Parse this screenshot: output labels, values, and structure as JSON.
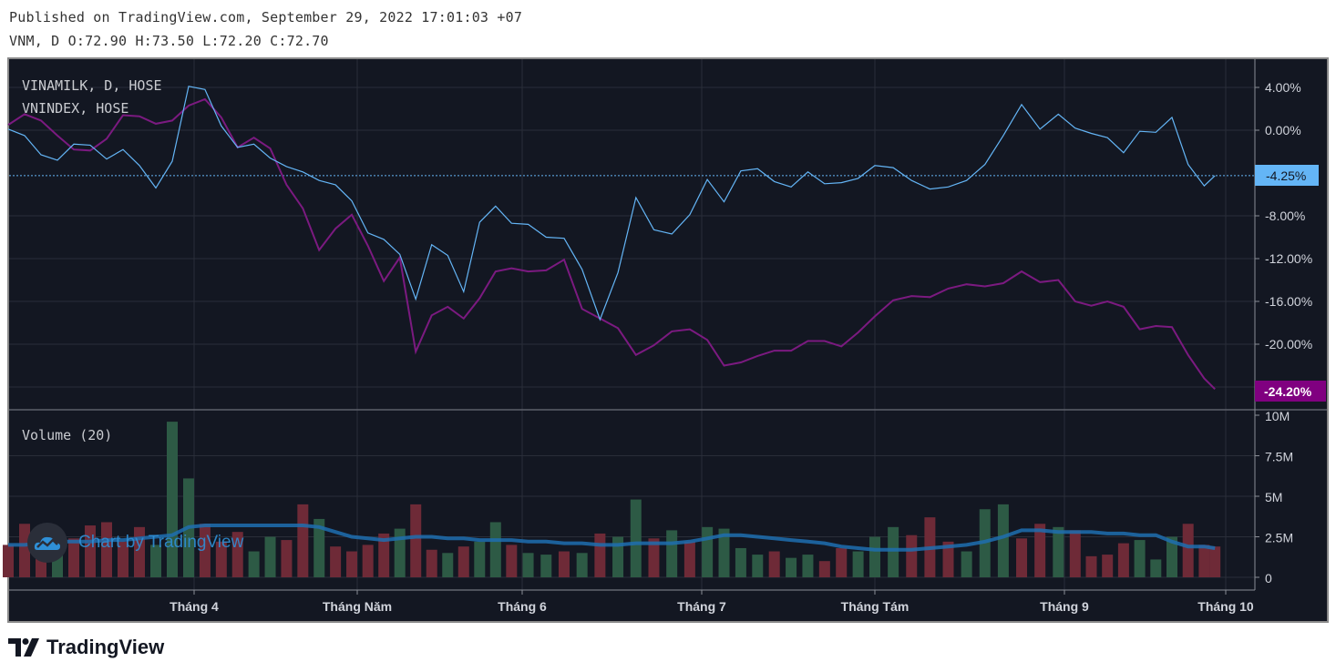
{
  "header": {
    "published": "Published on TradingView.com, September 29, 2022 17:01:03 +07",
    "ohlc": "VNM, D O:72.90 H:73.50 L:72.20 C:72.70"
  },
  "legend": {
    "series1": "VINAMILK, D, HOSE",
    "series2": "VNINDEX, HOSE",
    "volume": "Volume (20)"
  },
  "watermark": {
    "text": "Chart by TradingView",
    "icon": "tradingview-cloud-icon"
  },
  "brand": {
    "text": "TradingView",
    "icon": "tradingview-logo-icon"
  },
  "colors": {
    "background": "#131722",
    "grid": "#2a2e39",
    "vinamilk": "#64b5f6",
    "vnindex": "#7b1a80",
    "volume_up": "#2d5a45",
    "volume_down": "#6e2a37",
    "volume_ma": "#1f6fb0"
  },
  "chart_data": [
    {
      "type": "line",
      "title": "",
      "ylabel": "",
      "y_unit": "%",
      "ylim": [
        -25.5,
        5.5
      ],
      "yticks": [
        "4.00%",
        "0.00%",
        "-8.00%",
        "-12.00%",
        "-16.00%",
        "-20.00%"
      ],
      "ytick_values": [
        4,
        0,
        -8,
        -12,
        -16,
        -20
      ],
      "xticks": [
        "Tháng 4",
        "Tháng Năm",
        "Tháng 6",
        "Tháng 7",
        "Tháng Tám",
        "Tháng 9",
        "Tháng 10"
      ],
      "grid": true,
      "x": [
        "2022-02-26",
        "2022-03-01",
        "2022-03-04",
        "2022-03-07",
        "2022-03-10",
        "2022-03-13",
        "2022-03-16",
        "2022-03-19",
        "2022-03-22",
        "2022-03-25",
        "2022-03-28",
        "2022-03-31",
        "2022-04-03",
        "2022-04-06",
        "2022-04-09",
        "2022-04-12",
        "2022-04-15",
        "2022-04-18",
        "2022-04-21",
        "2022-04-24",
        "2022-04-27",
        "2022-04-30",
        "2022-05-03",
        "2022-05-06",
        "2022-05-09",
        "2022-05-12",
        "2022-05-15",
        "2022-05-18",
        "2022-05-21",
        "2022-05-24",
        "2022-05-27",
        "2022-05-30",
        "2022-06-02",
        "2022-06-05",
        "2022-06-08",
        "2022-06-11",
        "2022-06-14",
        "2022-06-17",
        "2022-06-20",
        "2022-06-23",
        "2022-06-26",
        "2022-06-29",
        "2022-07-02",
        "2022-07-05",
        "2022-07-08",
        "2022-07-11",
        "2022-07-14",
        "2022-07-17",
        "2022-07-20",
        "2022-07-23",
        "2022-07-26",
        "2022-07-29",
        "2022-08-01",
        "2022-08-04",
        "2022-08-07",
        "2022-08-10",
        "2022-08-13",
        "2022-08-16",
        "2022-08-19",
        "2022-08-22",
        "2022-08-25",
        "2022-08-28",
        "2022-08-31",
        "2022-09-03",
        "2022-09-06",
        "2022-09-09",
        "2022-09-12",
        "2022-09-15",
        "2022-09-18",
        "2022-09-21",
        "2022-09-24",
        "2022-09-27",
        "2022-09-29"
      ],
      "series": [
        {
          "name": "VINAMILK, D, HOSE",
          "last_label": "-4.25%",
          "values": [
            0.1,
            -0.5,
            -2.3,
            -2.8,
            -1.3,
            -1.4,
            -2.7,
            -1.8,
            -3.3,
            -5.4,
            -2.9,
            4.1,
            3.8,
            0.4,
            -1.6,
            -1.3,
            -2.6,
            -3.4,
            -3.9,
            -4.7,
            -5.1,
            -6.6,
            -9.6,
            -10.2,
            -11.6,
            -15.8,
            -10.7,
            -11.7,
            -15.1,
            -8.6,
            -7.1,
            -8.7,
            -8.8,
            -10,
            -10.1,
            -13,
            -17.7,
            -13.3,
            -6.3,
            -9.3,
            -9.7,
            -7.9,
            -4.6,
            -6.7,
            -3.8,
            -3.6,
            -4.8,
            -5.3,
            -3.9,
            -5,
            -4.9,
            -4.5,
            -3.3,
            -3.5,
            -4.7,
            -5.5,
            -5.3,
            -4.7,
            -3.2,
            -0.5,
            2.4,
            0.1,
            1.5,
            0.2,
            -0.3,
            -0.7,
            -2.1,
            -0.1,
            -0.2,
            1.2,
            -3.2,
            -5.2,
            -4.25
          ]
        },
        {
          "name": "VNINDEX, HOSE",
          "last_label": "-24.20%",
          "values": [
            0.5,
            1.5,
            0.9,
            -0.5,
            -1.8,
            -1.9,
            -0.8,
            1.4,
            1.3,
            0.6,
            0.9,
            2.3,
            2.9,
            1.2,
            -1.6,
            -0.7,
            -1.7,
            -5.1,
            -7.3,
            -11.2,
            -9.2,
            -7.9,
            -10.8,
            -14.1,
            -11.9,
            -20.7,
            -17.3,
            -16.5,
            -17.6,
            -15.7,
            -13.2,
            -12.9,
            -13.2,
            -13.1,
            -12.1,
            -16.7,
            -17.6,
            -18.5,
            -21,
            -20.1,
            -18.8,
            -18.6,
            -19.6,
            -22,
            -21.7,
            -21.1,
            -20.6,
            -20.6,
            -19.7,
            -19.7,
            -20.2,
            -18.9,
            -17.4,
            -15.9,
            -15.5,
            -15.6,
            -14.8,
            -14.4,
            -14.6,
            -14.3,
            -13.2,
            -14.2,
            -14,
            -16,
            -16.4,
            -16,
            -16.5,
            -18.6,
            -18.3,
            -18.4,
            -21,
            -23.2,
            -24.2
          ]
        }
      ]
    },
    {
      "type": "bar",
      "title": "Volume (20)",
      "y_unit": "M",
      "ylim": [
        0,
        10
      ],
      "yticks": [
        "10M",
        "7.5M",
        "5M",
        "2.5M",
        "0"
      ],
      "ytick_values": [
        10,
        7.5,
        5,
        2.5,
        0
      ],
      "values": [
        2.0,
        3.3,
        2.6,
        2.0,
        2.4,
        3.2,
        3.4,
        2.2,
        3.1,
        2.0,
        9.6,
        6.1,
        3.3,
        2.2,
        2.8,
        1.6,
        2.5,
        2.3,
        4.5,
        3.6,
        1.9,
        1.6,
        2.0,
        2.7,
        3.0,
        4.5,
        1.7,
        1.5,
        1.9,
        2.2,
        3.4,
        2.0,
        1.5,
        1.4,
        1.6,
        1.5,
        2.7,
        2.5,
        4.8,
        2.4,
        2.9,
        2.2,
        3.1,
        3.0,
        1.8,
        1.4,
        1.6,
        1.2,
        1.4,
        1.0,
        1.8,
        1.6,
        2.5,
        3.1,
        2.6,
        3.7,
        2.2,
        1.6,
        4.2,
        4.5,
        2.4,
        3.3,
        3.1,
        2.9,
        1.3,
        1.4,
        2.1,
        2.3,
        1.1,
        2.5,
        3.3,
        2.0,
        1.9
      ],
      "direction": [
        "d",
        "d",
        "d",
        "u",
        "d",
        "d",
        "d",
        "d",
        "d",
        "u",
        "u",
        "u",
        "d",
        "d",
        "d",
        "u",
        "u",
        "d",
        "d",
        "u",
        "d",
        "d",
        "d",
        "d",
        "u",
        "d",
        "d",
        "u",
        "d",
        "u",
        "u",
        "d",
        "u",
        "u",
        "d",
        "u",
        "d",
        "u",
        "u",
        "d",
        "u",
        "d",
        "u",
        "u",
        "u",
        "u",
        "d",
        "u",
        "u",
        "d",
        "d",
        "u",
        "u",
        "u",
        "d",
        "d",
        "d",
        "u",
        "u",
        "u",
        "d",
        "d",
        "u",
        "d",
        "d",
        "d",
        "d",
        "u",
        "u",
        "u",
        "d",
        "d",
        "d"
      ],
      "ma20": [
        2.0,
        2.0,
        2.1,
        2.2,
        2.2,
        2.2,
        2.3,
        2.3,
        2.4,
        2.5,
        2.6,
        3.1,
        3.2,
        3.2,
        3.2,
        3.2,
        3.2,
        3.2,
        3.2,
        3.1,
        2.8,
        2.5,
        2.4,
        2.3,
        2.4,
        2.5,
        2.5,
        2.4,
        2.4,
        2.3,
        2.3,
        2.3,
        2.2,
        2.2,
        2.1,
        2.1,
        2.0,
        2.0,
        2.1,
        2.1,
        2.1,
        2.2,
        2.4,
        2.6,
        2.6,
        2.5,
        2.4,
        2.3,
        2.2,
        2.1,
        1.9,
        1.8,
        1.7,
        1.7,
        1.7,
        1.8,
        1.9,
        2.0,
        2.2,
        2.5,
        2.9,
        2.9,
        2.8,
        2.8,
        2.8,
        2.7,
        2.7,
        2.6,
        2.6,
        2.2,
        1.9,
        1.9,
        1.8
      ]
    }
  ]
}
